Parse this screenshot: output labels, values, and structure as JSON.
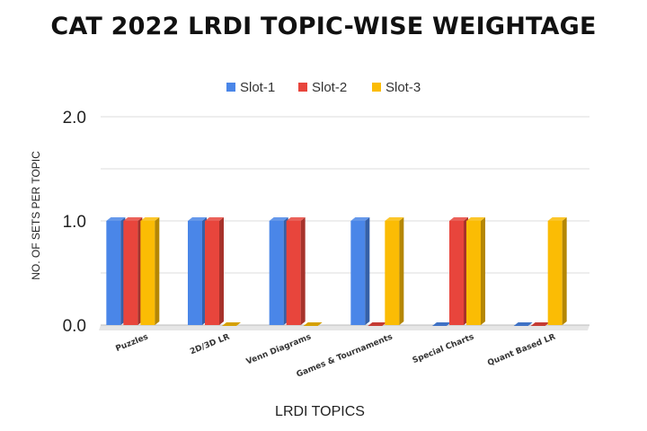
{
  "chart_data": {
    "type": "bar",
    "title": "CAT 2022 LRDI TOPIC-WISE WEIGHTAGE",
    "xlabel": "LRDI TOPICS",
    "ylabel": "NO. OF SETS PER TOPIC",
    "categories": [
      "Puzzles",
      "2D/3D LR",
      "Venn Diagrams",
      "Games & Tournaments",
      "Special Charts",
      "Quant Based LR"
    ],
    "series": [
      {
        "name": "Slot-1",
        "color": "#4a86e8",
        "values": [
          1,
          1,
          1,
          1,
          0,
          0
        ]
      },
      {
        "name": "Slot-2",
        "color": "#e8453c",
        "values": [
          1,
          1,
          1,
          0,
          1,
          0
        ]
      },
      {
        "name": "Slot-3",
        "color": "#fbbc04",
        "values": [
          1,
          0,
          0,
          1,
          1,
          1
        ]
      }
    ],
    "ylim": [
      0,
      2
    ],
    "yticks": [
      "0.0",
      "1.0",
      "2.0"
    ],
    "grid": true,
    "legend": "top-center"
  }
}
